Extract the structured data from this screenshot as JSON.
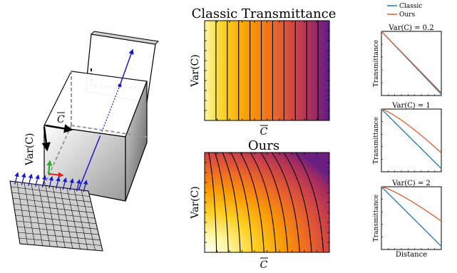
{
  "figure": {
    "left_panel": {
      "label_mean": "C",
      "label_var": "Var(C)"
    },
    "middle_panel": {
      "top_title": "Classic Transmittance",
      "bottom_title": "Ours",
      "ylabel": "Var(C)",
      "xlabel": "C"
    },
    "right_panel": {
      "legend": [
        {
          "name": "Classic",
          "color": "#1f77b4"
        },
        {
          "name": "Ours",
          "color": "#d95f30"
        }
      ],
      "plots": [
        {
          "title": "Var(C) = 0.2",
          "ylabel": "Transmittance"
        },
        {
          "title": "Var(C) = 1",
          "ylabel": "Transmittance"
        },
        {
          "title": "Var(C) = 2",
          "ylabel": "Transmittance"
        }
      ],
      "xlabel": "Distance"
    }
  },
  "chart_data": [
    {
      "type": "line",
      "title": "Var(C) = 0.2",
      "ylabel": "Transmittance",
      "x": [
        0,
        1
      ],
      "series": [
        {
          "name": "Classic",
          "values": [
            1.0,
            0.02
          ]
        },
        {
          "name": "Ours",
          "values": [
            1.0,
            0.04
          ]
        }
      ]
    },
    {
      "type": "line",
      "title": "Var(C) = 1",
      "ylabel": "Transmittance",
      "x": [
        0,
        1
      ],
      "series": [
        {
          "name": "Classic",
          "values": [
            1.0,
            0.05
          ]
        },
        {
          "name": "Ours",
          "values": [
            1.0,
            0.3
          ]
        }
      ]
    },
    {
      "type": "line",
      "title": "Var(C) = 2",
      "ylabel": "Transmittance",
      "xlabel": "Distance",
      "x": [
        0,
        1
      ],
      "series": [
        {
          "name": "Classic",
          "values": [
            1.0,
            0.05
          ]
        },
        {
          "name": "Ours",
          "values": [
            1.0,
            0.45
          ]
        }
      ]
    }
  ]
}
